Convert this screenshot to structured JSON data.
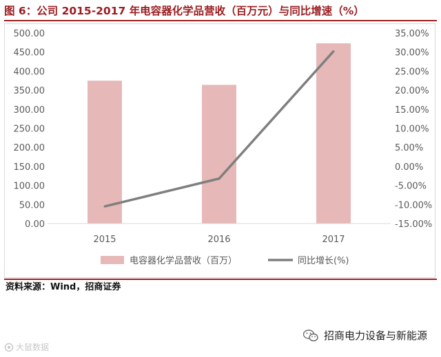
{
  "header": {
    "title": "图 6：公司 2015-2017 年电容器化学品营收（百万元）与同比增速（%）"
  },
  "footer": {
    "source": "资料来源：Wind，招商证券",
    "watermark_left": "大鼠数据",
    "watermark_right": "招商电力设备与新能源"
  },
  "colors": {
    "bar": "#e6b9b8",
    "line": "#7f7f7f",
    "title": "#9b1c1f",
    "axis_text": "#595959"
  },
  "chart_data": {
    "type": "bar",
    "categories": [
      "2015",
      "2016",
      "2017"
    ],
    "series": [
      {
        "name": "电容器化学品营收（百万）",
        "type": "bar",
        "axis": "left",
        "values": [
          375,
          364,
          473
        ]
      },
      {
        "name": "同比增长(%)",
        "type": "line",
        "axis": "right",
        "values": [
          -10.5,
          -3.2,
          30.2
        ]
      }
    ],
    "y_left": {
      "min": 0,
      "max": 500,
      "step": 50,
      "tick_labels": [
        "0.00",
        "50.00",
        "100.00",
        "150.00",
        "200.00",
        "250.00",
        "300.00",
        "350.00",
        "400.00",
        "450.00",
        "500.00"
      ]
    },
    "y_right": {
      "min": -15,
      "max": 35,
      "step": 5,
      "tick_labels": [
        "-15.00%",
        "-10.00%",
        "-5.00%",
        "0.00%",
        "5.00%",
        "10.00%",
        "15.00%",
        "20.00%",
        "25.00%",
        "30.00%",
        "35.00%"
      ]
    },
    "grid": false,
    "legend_position": "bottom"
  }
}
